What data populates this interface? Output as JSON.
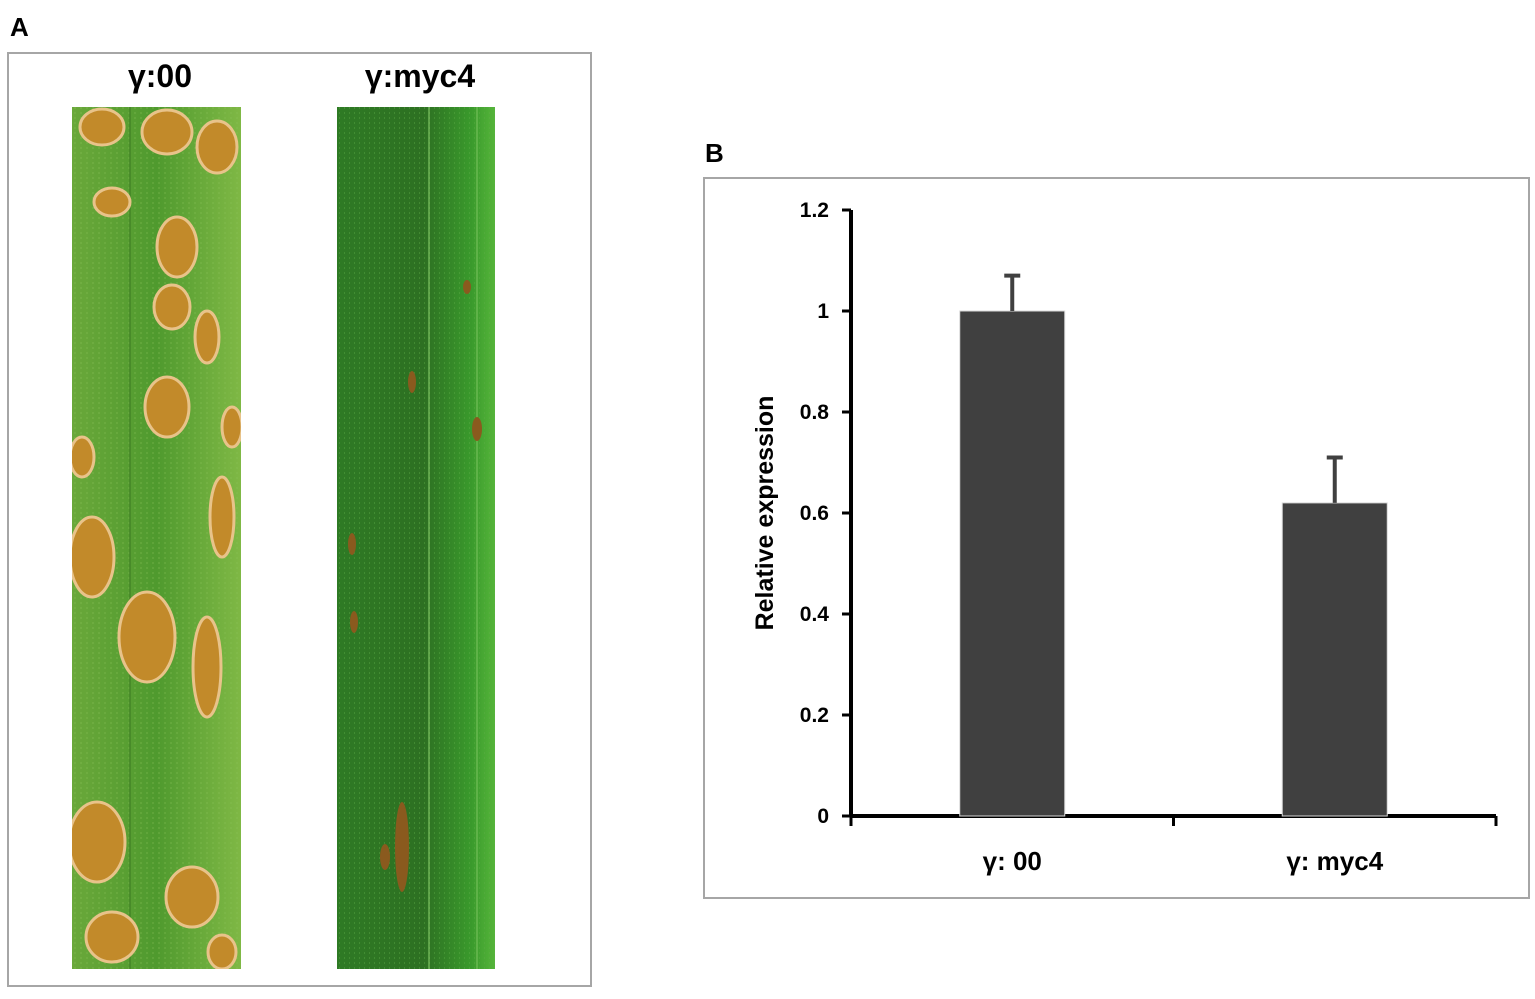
{
  "panels": {
    "a_letter": "A",
    "b_letter": "B"
  },
  "leaf_panel": {
    "left_label": "γ:00",
    "right_label": "γ:myc4"
  },
  "colors": {
    "bar": "#404040",
    "leaf_green": "#4f9a2e",
    "pustule": "#c28a2a",
    "panel_border": "#a6a6a6"
  },
  "chart_data": {
    "type": "bar",
    "categories": [
      "γ: 00",
      "γ: myc4"
    ],
    "values": [
      1.0,
      0.62
    ],
    "error": [
      0.07,
      0.09
    ],
    "ylabel": "Relative expression",
    "xlabel": "",
    "ylim": [
      0,
      1.2
    ],
    "yticks": [
      "0",
      "0.2",
      "0.4",
      "0.6",
      "0.8",
      "1",
      "1.2"
    ],
    "grid": false
  }
}
